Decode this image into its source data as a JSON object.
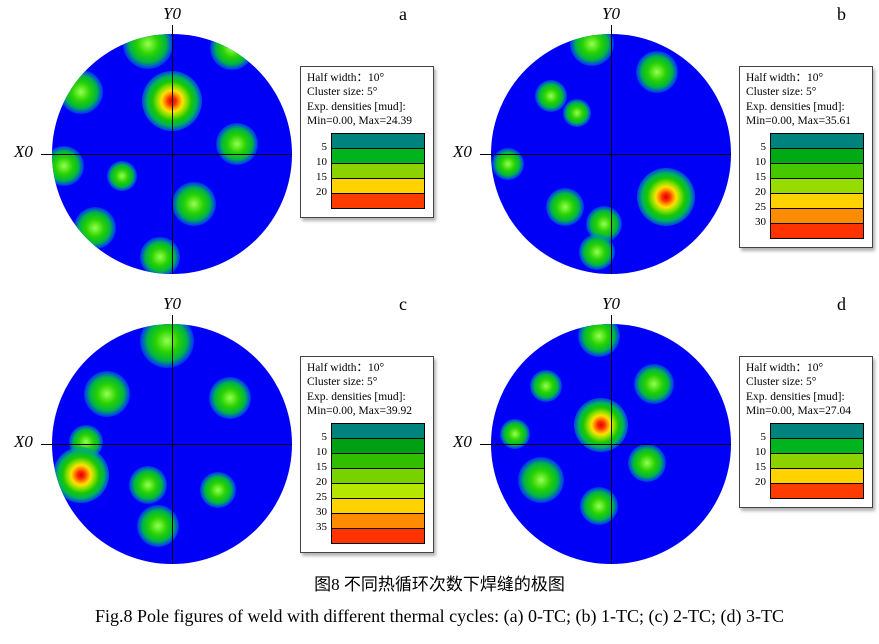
{
  "chart_data": {
    "type": "heatmap",
    "subtype": "pole-figure-density-maps",
    "field_color": "#0000f6",
    "panels": [
      {
        "letter": "a",
        "axis_top": "Y0",
        "axis_left": "X0",
        "legend": {
          "half_width": "Half width：10°",
          "cluster_size": "Cluster size: 5°",
          "densities": "Exp. densities [mud]:",
          "min_max": "Min=0.00, Max=24.39",
          "scale_labels": [
            "5",
            "10",
            "15",
            "20"
          ],
          "band_colors": [
            "#00837d",
            "#00b41e",
            "#8cd200",
            "#ffd200",
            "#ff3c00"
          ]
        },
        "spots": [
          {
            "x": 40,
            "y": 4,
            "s": 50,
            "t": "g"
          },
          {
            "x": 75,
            "y": 6,
            "s": 44,
            "t": "g"
          },
          {
            "x": 50,
            "y": 28,
            "s": 60,
            "t": "hot"
          },
          {
            "x": 12,
            "y": 24,
            "s": 44,
            "t": "g"
          },
          {
            "x": 5,
            "y": 55,
            "s": 40,
            "t": "g"
          },
          {
            "x": 18,
            "y": 81,
            "s": 42,
            "t": "g"
          },
          {
            "x": 29,
            "y": 59,
            "s": 30,
            "t": "g"
          },
          {
            "x": 77,
            "y": 46,
            "s": 42,
            "t": "g"
          },
          {
            "x": 59,
            "y": 71,
            "s": 44,
            "t": "g"
          },
          {
            "x": 45,
            "y": 93,
            "s": 40,
            "t": "g"
          }
        ]
      },
      {
        "letter": "b",
        "axis_top": "Y0",
        "axis_left": "X0",
        "legend": {
          "half_width": "Half width：10°",
          "cluster_size": "Cluster size: 5°",
          "densities": "Exp. densities [mud]:",
          "min_max": "Min=0.00, Max=35.61",
          "scale_labels": [
            "5",
            "10",
            "15",
            "20",
            "25",
            "30"
          ],
          "band_colors": [
            "#00837d",
            "#00aa14",
            "#46c800",
            "#96dc00",
            "#ffd200",
            "#ff8c00",
            "#ff3200"
          ]
        },
        "spots": [
          {
            "x": 42,
            "y": 4,
            "s": 44,
            "t": "g"
          },
          {
            "x": 69,
            "y": 16,
            "s": 42,
            "t": "g"
          },
          {
            "x": 25,
            "y": 26,
            "s": 32,
            "t": "g"
          },
          {
            "x": 36,
            "y": 33,
            "s": 28,
            "t": "g"
          },
          {
            "x": 7,
            "y": 54,
            "s": 32,
            "t": "g"
          },
          {
            "x": 31,
            "y": 72,
            "s": 38,
            "t": "g"
          },
          {
            "x": 47,
            "y": 79,
            "s": 36,
            "t": "g"
          },
          {
            "x": 73,
            "y": 68,
            "s": 58,
            "t": "hot"
          },
          {
            "x": 44,
            "y": 91,
            "s": 36,
            "t": "g"
          }
        ]
      },
      {
        "letter": "c",
        "axis_top": "Y0",
        "axis_left": "X0",
        "legend": {
          "half_width": "Half width：10°",
          "cluster_size": "Cluster size: 5°",
          "densities": "Exp. densities [mud]:",
          "min_max": "Min=0.00, Max=39.92",
          "scale_labels": [
            "5",
            "10",
            "15",
            "20",
            "25",
            "30",
            "35"
          ],
          "band_colors": [
            "#00837d",
            "#00a014",
            "#32be00",
            "#78d200",
            "#b4e600",
            "#ffd200",
            "#ff8c00",
            "#ff3200"
          ]
        },
        "spots": [
          {
            "x": 48,
            "y": 7,
            "s": 54,
            "t": "g"
          },
          {
            "x": 23,
            "y": 29,
            "s": 46,
            "t": "g"
          },
          {
            "x": 74,
            "y": 31,
            "s": 42,
            "t": "g"
          },
          {
            "x": 14,
            "y": 49,
            "s": 34,
            "t": "g"
          },
          {
            "x": 12,
            "y": 63,
            "s": 56,
            "t": "hot"
          },
          {
            "x": 40,
            "y": 67,
            "s": 38,
            "t": "g"
          },
          {
            "x": 69,
            "y": 69,
            "s": 36,
            "t": "g"
          },
          {
            "x": 44,
            "y": 84,
            "s": 42,
            "t": "g"
          }
        ]
      },
      {
        "letter": "d",
        "axis_top": "Y0",
        "axis_left": "X0",
        "legend": {
          "half_width": "Half width：10°",
          "cluster_size": "Cluster size: 5°",
          "densities": "Exp. densities [mud]:",
          "min_max": "Min=0.00, Max=27.04",
          "scale_labels": [
            "5",
            "10",
            "15",
            "20"
          ],
          "band_colors": [
            "#00837d",
            "#00b41e",
            "#8cd200",
            "#ffd200",
            "#ff3c00"
          ]
        },
        "spots": [
          {
            "x": 45,
            "y": 5,
            "s": 42,
            "t": "g"
          },
          {
            "x": 68,
            "y": 25,
            "s": 40,
            "t": "g"
          },
          {
            "x": 23,
            "y": 26,
            "s": 32,
            "t": "g"
          },
          {
            "x": 46,
            "y": 42,
            "s": 54,
            "t": "hot"
          },
          {
            "x": 10,
            "y": 46,
            "s": 30,
            "t": "g"
          },
          {
            "x": 21,
            "y": 65,
            "s": 46,
            "t": "g"
          },
          {
            "x": 65,
            "y": 58,
            "s": 38,
            "t": "g"
          },
          {
            "x": 45,
            "y": 76,
            "s": 38,
            "t": "g"
          }
        ]
      }
    ]
  },
  "caption": {
    "zh": "图8 不同热循环次数下焊缝的极图",
    "en": "Fig.8 Pole figures of weld with different thermal cycles: (a) 0-TC; (b) 1-TC; (c) 2-TC; (d) 3-TC"
  }
}
